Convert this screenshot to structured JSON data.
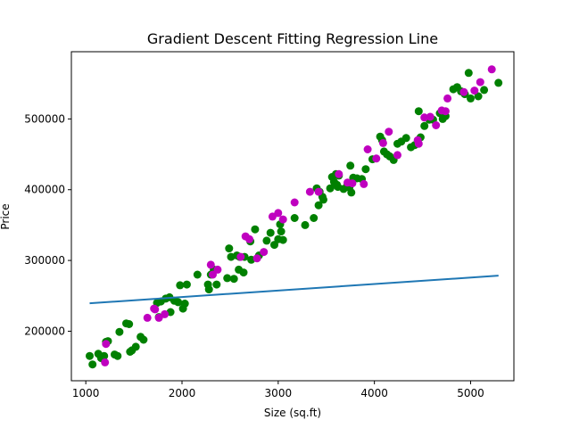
{
  "chart_data": {
    "type": "scatter",
    "title": "Gradient Descent Fitting Regression Line",
    "xlabel": "Size (sq.ft)",
    "ylabel": "Price",
    "xlim": [
      850,
      5450
    ],
    "ylim": [
      130000,
      595000
    ],
    "xticks": [
      1000,
      2000,
      3000,
      4000,
      5000
    ],
    "yticks": [
      200000,
      300000,
      400000,
      500000
    ],
    "xtick_labels": [
      "1000",
      "2000",
      "3000",
      "4000",
      "5000"
    ],
    "ytick_labels": [
      "200000",
      "300000",
      "400000",
      "500000"
    ],
    "grid": false,
    "legend": false,
    "colors": {
      "series_a": "#008000",
      "series_b": "#bf00bf",
      "fit_line": "#1f77b4"
    },
    "series": [
      {
        "marker": "circle",
        "color": "#008000",
        "points": [
          [
            1040,
            165000
          ],
          [
            1070,
            153000
          ],
          [
            1130,
            168000
          ],
          [
            1160,
            162000
          ],
          [
            1190,
            165000
          ],
          [
            1210,
            185000
          ],
          [
            1230,
            186000
          ],
          [
            1300,
            167000
          ],
          [
            1330,
            165000
          ],
          [
            1350,
            199000
          ],
          [
            1420,
            211000
          ],
          [
            1450,
            210000
          ],
          [
            1460,
            171000
          ],
          [
            1480,
            173000
          ],
          [
            1520,
            178000
          ],
          [
            1570,
            192000
          ],
          [
            1600,
            188000
          ],
          [
            1740,
            240000
          ],
          [
            1760,
            220000
          ],
          [
            1780,
            242000
          ],
          [
            1830,
            246000
          ],
          [
            1870,
            248000
          ],
          [
            1880,
            227000
          ],
          [
            1920,
            243000
          ],
          [
            1960,
            241000
          ],
          [
            1980,
            265000
          ],
          [
            2010,
            232000
          ],
          [
            2030,
            239000
          ],
          [
            2050,
            266000
          ],
          [
            2160,
            280000
          ],
          [
            2270,
            266000
          ],
          [
            2280,
            259000
          ],
          [
            2300,
            280000
          ],
          [
            2330,
            287000
          ],
          [
            2360,
            266000
          ],
          [
            2470,
            275000
          ],
          [
            2490,
            317000
          ],
          [
            2510,
            305000
          ],
          [
            2540,
            274000
          ],
          [
            2570,
            307000
          ],
          [
            2590,
            287000
          ],
          [
            2600,
            305000
          ],
          [
            2640,
            283000
          ],
          [
            2650,
            305000
          ],
          [
            2710,
            327000
          ],
          [
            2720,
            301000
          ],
          [
            2760,
            344000
          ],
          [
            2800,
            307000
          ],
          [
            2880,
            328000
          ],
          [
            2920,
            339000
          ],
          [
            2960,
            322000
          ],
          [
            3000,
            330000
          ],
          [
            3020,
            351000
          ],
          [
            3030,
            341000
          ],
          [
            3050,
            329000
          ],
          [
            3170,
            360000
          ],
          [
            3280,
            350000
          ],
          [
            3370,
            360000
          ],
          [
            3400,
            402000
          ],
          [
            3420,
            378000
          ],
          [
            3430,
            397000
          ],
          [
            3460,
            390000
          ],
          [
            3470,
            386000
          ],
          [
            3540,
            402000
          ],
          [
            3560,
            418000
          ],
          [
            3580,
            411000
          ],
          [
            3600,
            422000
          ],
          [
            3610,
            407000
          ],
          [
            3620,
            404000
          ],
          [
            3630,
            420000
          ],
          [
            3680,
            401000
          ],
          [
            3720,
            407000
          ],
          [
            3740,
            403000
          ],
          [
            3750,
            434000
          ],
          [
            3760,
            396000
          ],
          [
            3780,
            417000
          ],
          [
            3820,
            416000
          ],
          [
            3870,
            415000
          ],
          [
            3910,
            429000
          ],
          [
            3980,
            443000
          ],
          [
            4060,
            475000
          ],
          [
            4080,
            470000
          ],
          [
            4100,
            454000
          ],
          [
            4130,
            450000
          ],
          [
            4160,
            447000
          ],
          [
            4200,
            442000
          ],
          [
            4240,
            465000
          ],
          [
            4280,
            468000
          ],
          [
            4330,
            473000
          ],
          [
            4380,
            460000
          ],
          [
            4420,
            463000
          ],
          [
            4460,
            511000
          ],
          [
            4480,
            474000
          ],
          [
            4520,
            490000
          ],
          [
            4570,
            499000
          ],
          [
            4610,
            499000
          ],
          [
            4680,
            508000
          ],
          [
            4710,
            500000
          ],
          [
            4740,
            504000
          ],
          [
            4820,
            542000
          ],
          [
            4860,
            545000
          ],
          [
            4900,
            539000
          ],
          [
            4940,
            535000
          ],
          [
            4980,
            565000
          ],
          [
            5000,
            529000
          ],
          [
            5080,
            532000
          ],
          [
            5140,
            541000
          ],
          [
            5290,
            551000
          ]
        ]
      },
      {
        "marker": "circle",
        "color": "#bf00bf",
        "points": [
          [
            1200,
            156000
          ],
          [
            1210,
            182000
          ],
          [
            1640,
            219000
          ],
          [
            1710,
            232000
          ],
          [
            1720,
            231000
          ],
          [
            1760,
            219000
          ],
          [
            1820,
            224000
          ],
          [
            2300,
            294000
          ],
          [
            2320,
            280000
          ],
          [
            2370,
            287000
          ],
          [
            2610,
            305000
          ],
          [
            2660,
            334000
          ],
          [
            2700,
            330000
          ],
          [
            2780,
            303000
          ],
          [
            2850,
            312000
          ],
          [
            2940,
            362000
          ],
          [
            3000,
            367000
          ],
          [
            3050,
            358000
          ],
          [
            3170,
            382000
          ],
          [
            3330,
            397000
          ],
          [
            3420,
            397000
          ],
          [
            3630,
            422000
          ],
          [
            3720,
            410000
          ],
          [
            3770,
            409000
          ],
          [
            3890,
            408000
          ],
          [
            3930,
            457000
          ],
          [
            4020,
            444000
          ],
          [
            4090,
            466000
          ],
          [
            4150,
            482000
          ],
          [
            4240,
            449000
          ],
          [
            4450,
            470000
          ],
          [
            4460,
            465000
          ],
          [
            4520,
            502000
          ],
          [
            4580,
            503000
          ],
          [
            4640,
            491000
          ],
          [
            4700,
            512000
          ],
          [
            4740,
            511000
          ],
          [
            4760,
            529000
          ],
          [
            4930,
            538000
          ],
          [
            5040,
            540000
          ],
          [
            5100,
            552000
          ],
          [
            5220,
            570000
          ]
        ]
      }
    ],
    "line": {
      "type": "line",
      "color": "#1f77b4",
      "x": [
        1040,
        5290
      ],
      "y": [
        239500,
        278500
      ]
    }
  }
}
